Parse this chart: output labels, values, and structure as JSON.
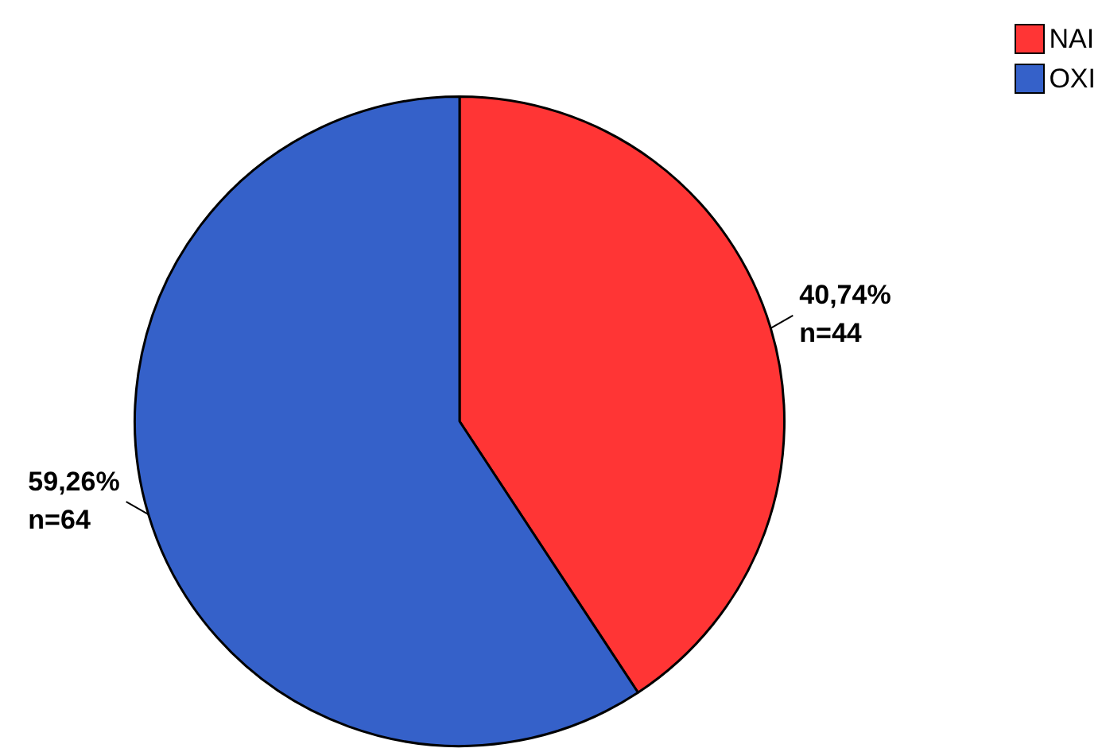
{
  "chart_data": {
    "type": "pie",
    "categories": [
      "NAI",
      "OXI"
    ],
    "values": [
      44,
      64
    ],
    "colors": [
      "#ff3535",
      "#3561c9"
    ],
    "value_labels": [
      "40,74%\nn=44",
      "59,26%\nn=64"
    ],
    "legend": "top right"
  }
}
